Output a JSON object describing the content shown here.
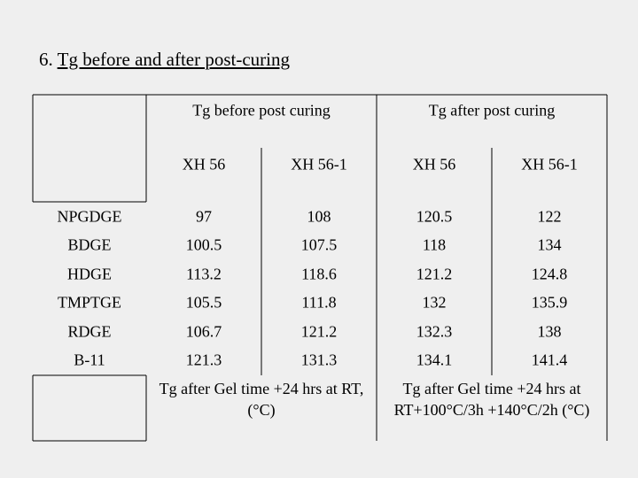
{
  "title_number": "6.",
  "title_text": "Tg before and after post-curing",
  "table": {
    "group_headers": [
      "Tg before post curing",
      "Tg after post curing"
    ],
    "sub_headers": [
      "XH 56",
      "XH 56-1",
      "XH 56",
      "XH 56-1"
    ],
    "rows": [
      {
        "label": "NPGDGE",
        "values": [
          97,
          108,
          120.5,
          122
        ]
      },
      {
        "label": "BDGE",
        "values": [
          100.5,
          107.5,
          118,
          134
        ]
      },
      {
        "label": "HDGE",
        "values": [
          113.2,
          118.6,
          121.2,
          124.8
        ]
      },
      {
        "label": "TMPTGE",
        "values": [
          105.5,
          111.8,
          132,
          135.9
        ]
      },
      {
        "label": "RDGE",
        "values": [
          106.7,
          121.2,
          132.3,
          138
        ]
      },
      {
        "label": "B-11",
        "values": [
          121.3,
          131.3,
          134.1,
          141.4
        ]
      }
    ],
    "footnotes": [
      "Tg after Gel time +24 hrs at RT, (°C)",
      "Tg after Gel time +24 hrs at RT+100°C/3h +140°C/2h (°C)"
    ]
  }
}
